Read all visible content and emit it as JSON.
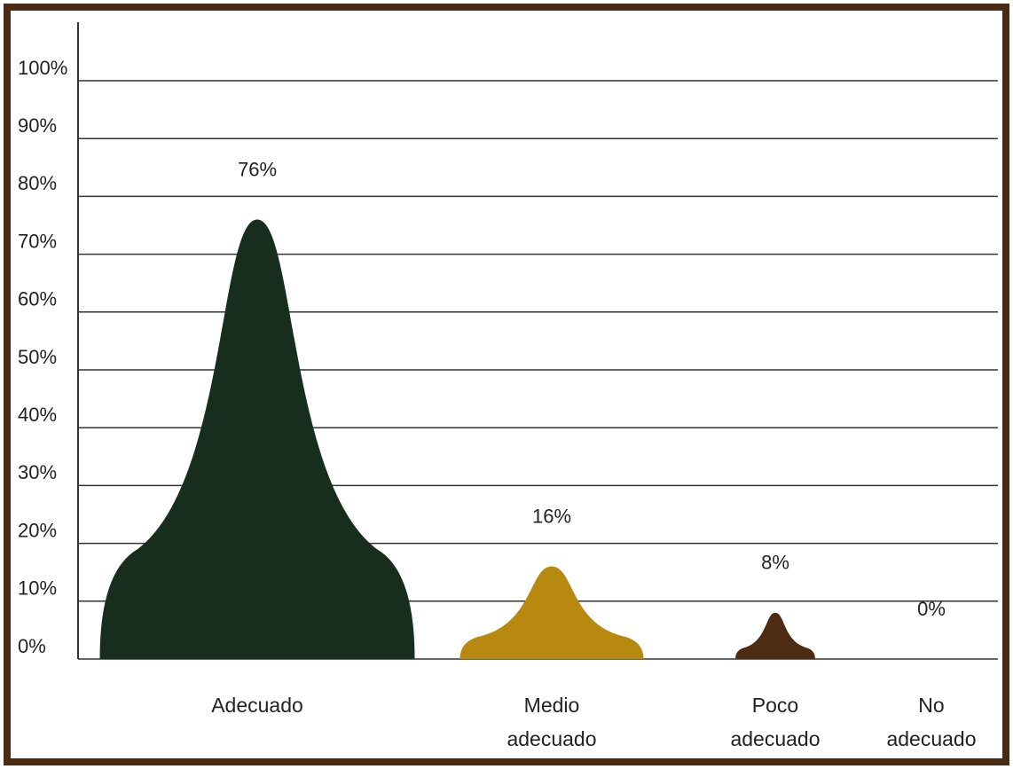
{
  "chart_data": {
    "type": "bar",
    "categories": [
      "Adecuado",
      "Medio adecuado",
      "Poco adecuado",
      "No adecuado"
    ],
    "values": [
      76,
      16,
      8,
      0
    ],
    "value_labels": [
      "76%",
      "16%",
      "8%",
      "0%"
    ],
    "colors": [
      "#172d1e",
      "#b8890f",
      "#4e2c14",
      "#4e2c14"
    ],
    "ylim": [
      0,
      100
    ],
    "yticks": [
      {
        "value": 0,
        "label": "0%"
      },
      {
        "value": 10,
        "label": "10%"
      },
      {
        "value": 20,
        "label": "20%"
      },
      {
        "value": 30,
        "label": "30%"
      },
      {
        "value": 40,
        "label": "40%"
      },
      {
        "value": 50,
        "label": "50%"
      },
      {
        "value": 60,
        "label": "60%"
      },
      {
        "value": 70,
        "label": "70%"
      },
      {
        "value": 80,
        "label": "80%"
      },
      {
        "value": 90,
        "label": "90%"
      },
      {
        "value": 100,
        "label": "100%"
      }
    ],
    "grid": true
  }
}
